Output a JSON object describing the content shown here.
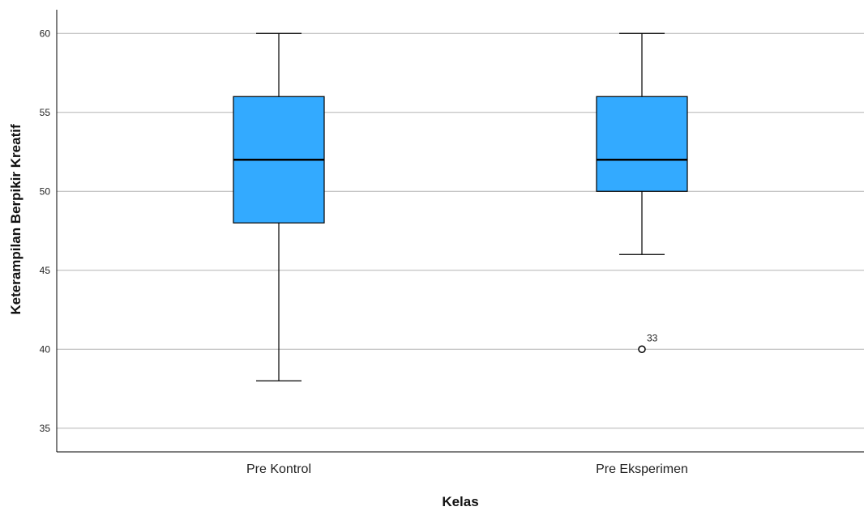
{
  "chart_data": {
    "type": "boxplot",
    "xlabel": "Kelas",
    "ylabel": "Keterampilan Berpikir Kreatif",
    "ylim": [
      33.5,
      61.5
    ],
    "yticks": [
      35,
      40,
      45,
      50,
      55,
      60
    ],
    "grid": true,
    "colors": {
      "box_fill": "#33aaff",
      "stroke": "#000000",
      "grid": "#b4b4b4"
    },
    "categories": [
      "Pre Kontrol",
      "Pre Eksperimen"
    ],
    "boxes": [
      {
        "category": "Pre Kontrol",
        "whisker_low": 38,
        "q1": 48,
        "median": 52,
        "q3": 56,
        "whisker_high": 60,
        "outliers": []
      },
      {
        "category": "Pre Eksperimen",
        "whisker_low": 46,
        "q1": 50,
        "median": 52,
        "q3": 56,
        "whisker_high": 60,
        "outliers": [
          {
            "value": 40,
            "label": "33"
          }
        ]
      }
    ]
  }
}
